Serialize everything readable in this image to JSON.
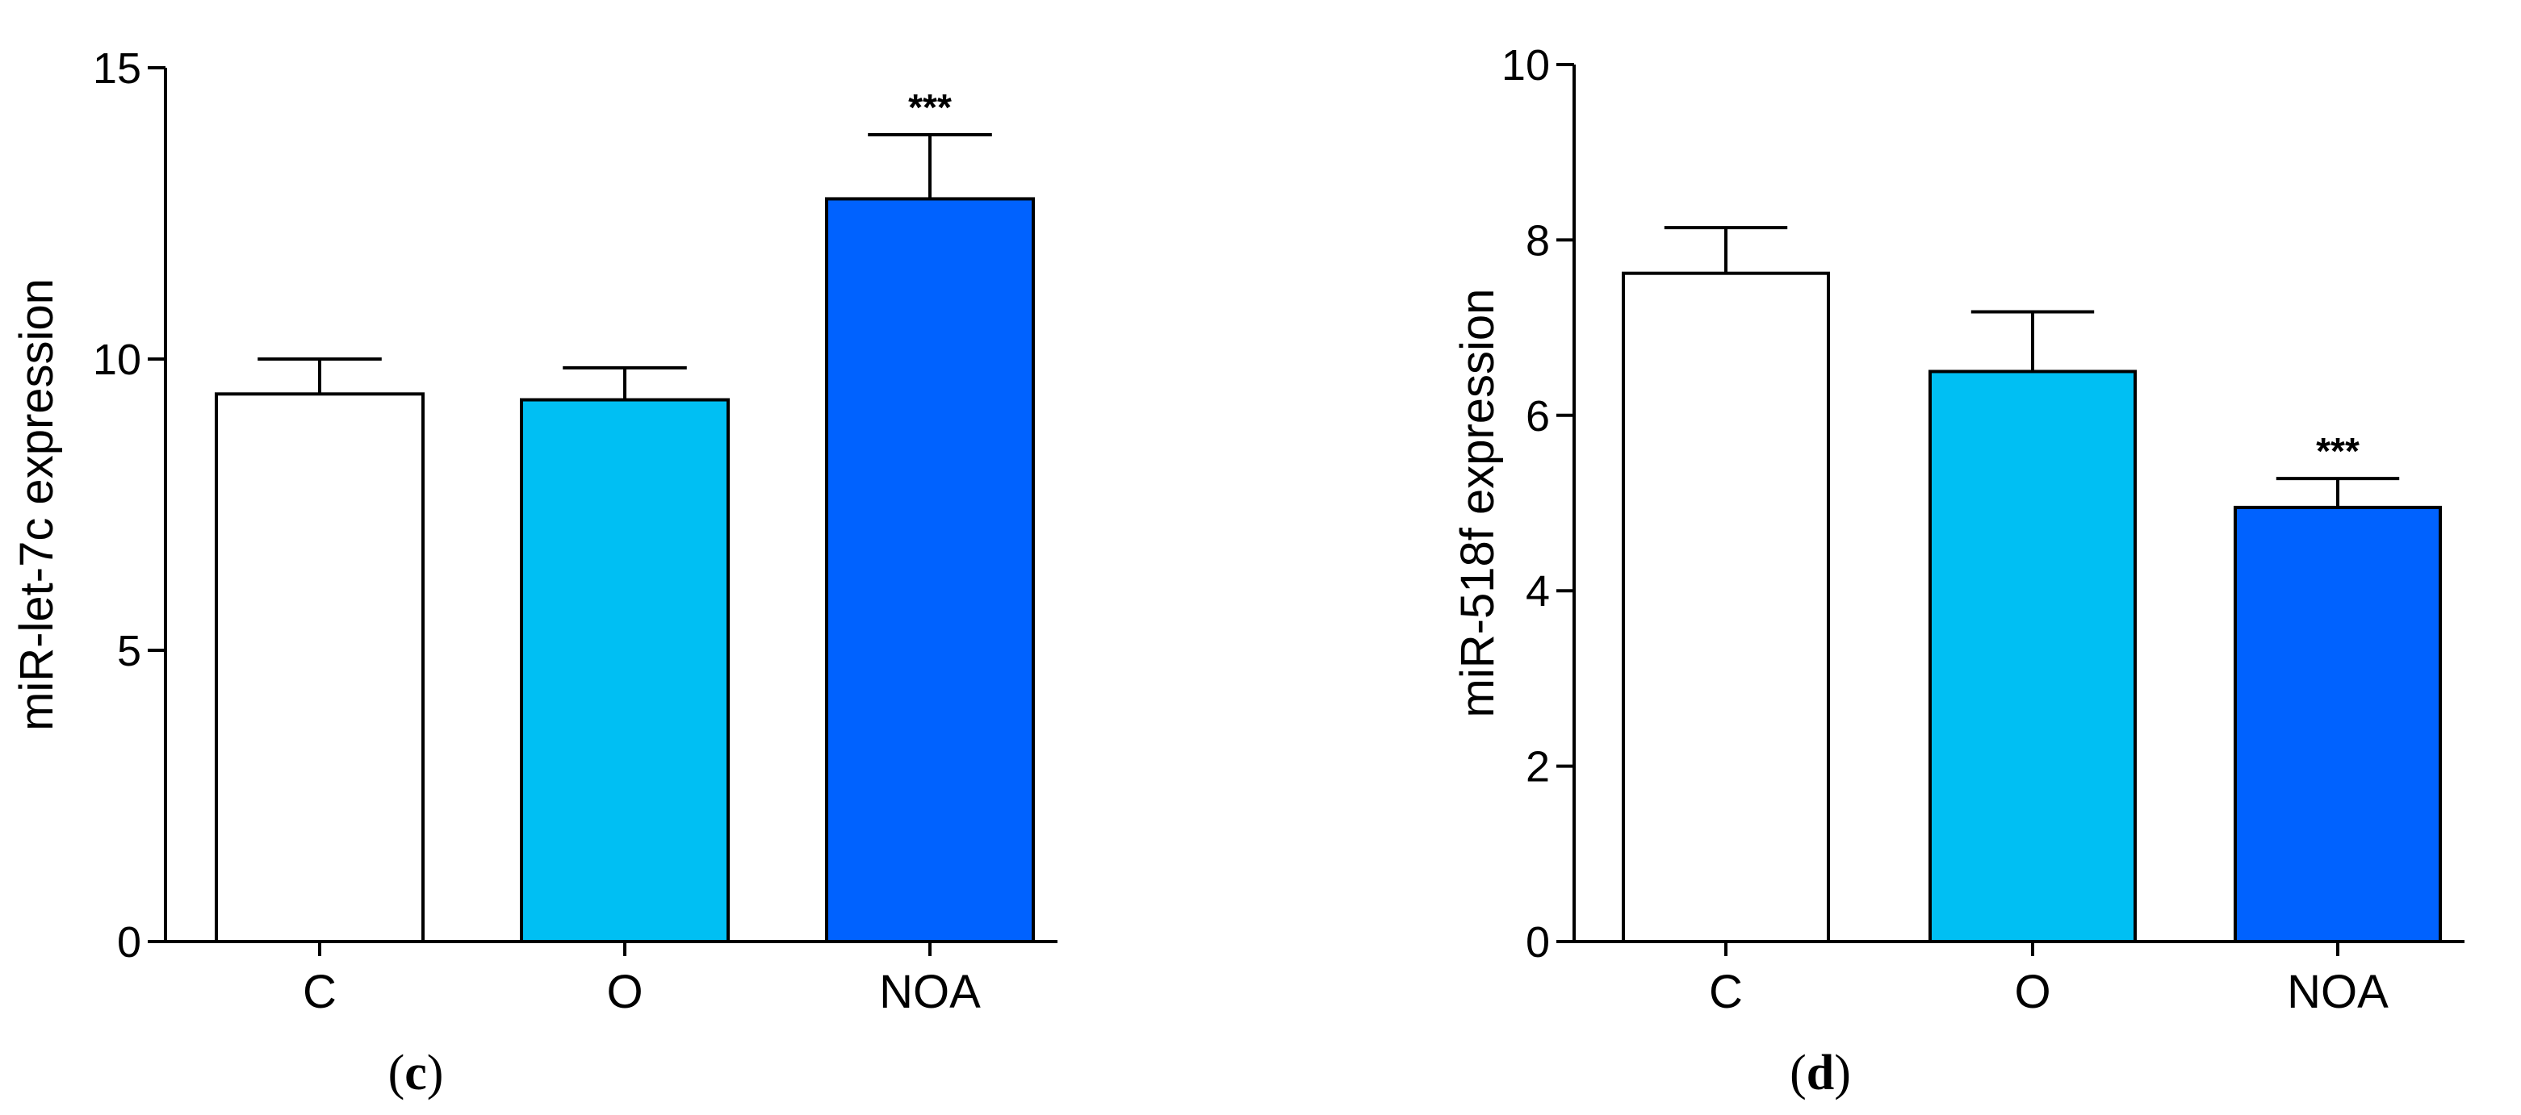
{
  "chart_data": [
    {
      "type": "bar",
      "panel_label": "c",
      "categories": [
        "C",
        "O",
        "NOA"
      ],
      "values": [
        9.4,
        9.3,
        12.75
      ],
      "errors": [
        0.6,
        0.55,
        1.1
      ],
      "significance": [
        "",
        "",
        "***"
      ],
      "colors": [
        "#ffffff",
        "#00bff3",
        "#0062ff"
      ],
      "title": "",
      "xlabel": "",
      "ylabel": "miR-let-7c expression",
      "ylim": [
        0,
        15
      ],
      "yticks": [
        0,
        5,
        10,
        15
      ],
      "grid": false,
      "legend": "none"
    },
    {
      "type": "bar",
      "panel_label": "d",
      "categories": [
        "C",
        "O",
        "NOA"
      ],
      "values": [
        7.62,
        6.5,
        4.95
      ],
      "errors": [
        0.52,
        0.68,
        0.33
      ],
      "significance": [
        "",
        "",
        "***"
      ],
      "colors": [
        "#ffffff",
        "#00bff3",
        "#0062ff"
      ],
      "title": "",
      "xlabel": "",
      "ylabel": "miR-518f expression",
      "ylim": [
        0,
        10
      ],
      "yticks": [
        0,
        2,
        4,
        6,
        8,
        10
      ],
      "grid": false,
      "legend": "none"
    }
  ]
}
